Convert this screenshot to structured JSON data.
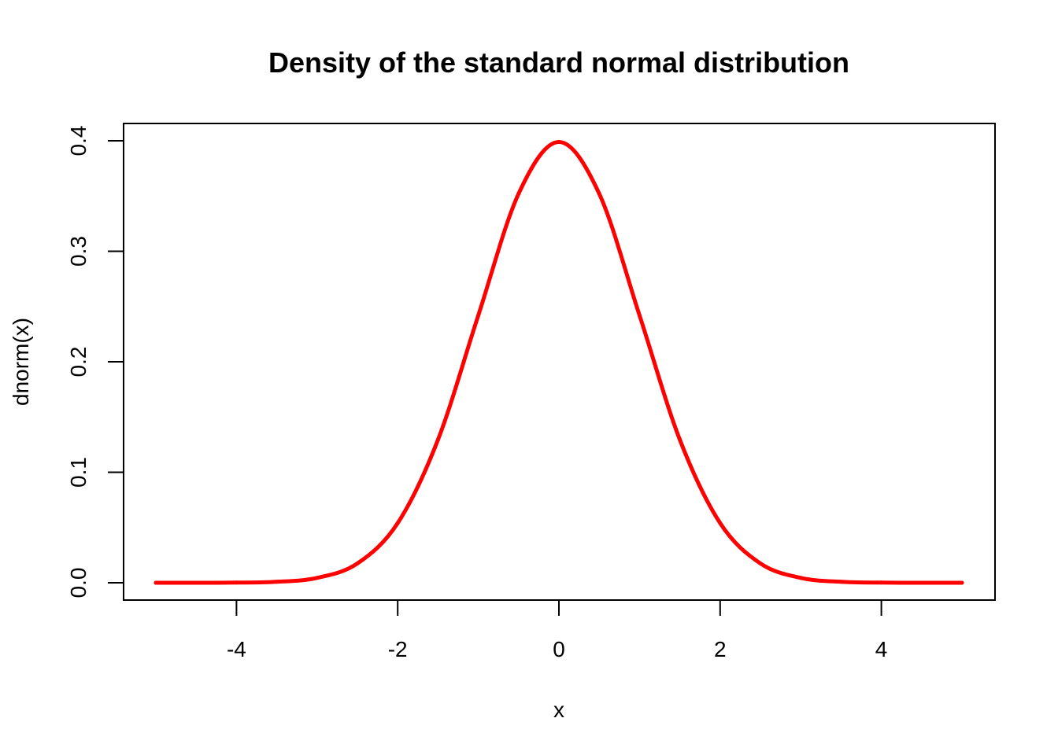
{
  "chart_data": {
    "type": "line",
    "title": "Density of the standard normal distribution",
    "xlabel": "x",
    "ylabel": "dnorm(x)",
    "xlim": [
      -5,
      5
    ],
    "ylim": [
      0,
      0.4
    ],
    "x_ticks": [
      -4,
      -2,
      0,
      2,
      4
    ],
    "x_tick_labels": [
      "-4",
      "-2",
      "0",
      "2",
      "4"
    ],
    "y_ticks": [
      0,
      0.1,
      0.2,
      0.3,
      0.4
    ],
    "y_tick_labels": [
      "0.0",
      "0.1",
      "0.2",
      "0.3",
      "0.4"
    ],
    "grid": false,
    "series": [
      {
        "color": "#ff0000",
        "x": [
          -5,
          -4.5,
          -4,
          -3.5,
          -3,
          -2.5,
          -2,
          -1.5,
          -1,
          -0.5,
          0,
          0.5,
          1,
          1.5,
          2,
          2.5,
          3,
          3.5,
          4,
          4.5,
          5
        ],
        "values": [
          1.5e-06,
          1.6e-05,
          0.000134,
          0.000873,
          0.00443,
          0.0175,
          0.054,
          0.1295,
          0.242,
          0.3521,
          0.3989,
          0.3521,
          0.242,
          0.1295,
          0.054,
          0.0175,
          0.00443,
          0.000873,
          0.000134,
          1.6e-05,
          1.5e-06
        ]
      }
    ]
  }
}
